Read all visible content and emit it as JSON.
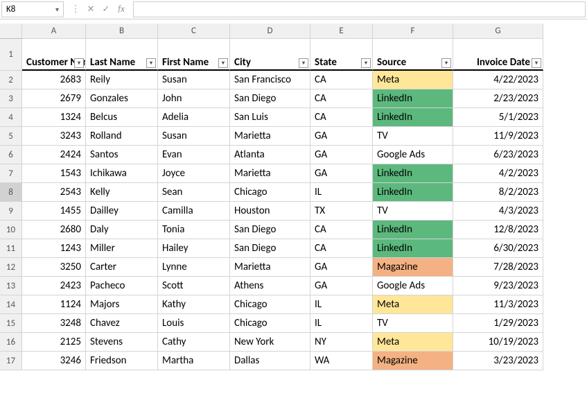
{
  "nameBox": "K8",
  "formulaInput": "",
  "columns": [
    "A",
    "B",
    "C",
    "D",
    "E",
    "F",
    "G"
  ],
  "headers": {
    "A": "Customer Number",
    "B": "Last Name",
    "C": "First Name",
    "D": "City",
    "E": "State",
    "F": "Source",
    "G": "Invoice Date"
  },
  "rowNumbers": [
    1,
    2,
    3,
    4,
    5,
    6,
    7,
    8,
    9,
    10,
    11,
    12,
    13,
    14,
    15,
    16,
    17
  ],
  "selectedRow": 8,
  "sourceColors": {
    "LinkedIn": "src-linkedin",
    "Meta": "src-meta",
    "Magazine": "src-magazine"
  },
  "rows": [
    {
      "num": "2683",
      "last": "Reily",
      "first": "Susan",
      "city": "San Francisco",
      "state": "CA",
      "source": "Meta",
      "date": "4/22/2023"
    },
    {
      "num": "2679",
      "last": "Gonzales",
      "first": "John",
      "city": "San Diego",
      "state": "CA",
      "source": "LinkedIn",
      "date": "2/23/2023"
    },
    {
      "num": "1324",
      "last": "Belcus",
      "first": "Adelia",
      "city": "San Luis",
      "state": "CA",
      "source": "LinkedIn",
      "date": "5/1/2023"
    },
    {
      "num": "3243",
      "last": "Rolland",
      "first": "Susan",
      "city": "Marietta",
      "state": "GA",
      "source": "TV",
      "date": "11/9/2023"
    },
    {
      "num": "2424",
      "last": "Santos",
      "first": "Evan",
      "city": "Atlanta",
      "state": "GA",
      "source": "Google Ads",
      "date": "6/23/2023"
    },
    {
      "num": "1543",
      "last": "Ichikawa",
      "first": "Joyce",
      "city": "Marietta",
      "state": "GA",
      "source": "LinkedIn",
      "date": "4/2/2023"
    },
    {
      "num": "2543",
      "last": "Kelly",
      "first": "Sean",
      "city": "Chicago",
      "state": "IL",
      "source": "LinkedIn",
      "date": "8/2/2023"
    },
    {
      "num": "1455",
      "last": "Dailley",
      "first": "Camilla",
      "city": "Houston",
      "state": "TX",
      "source": "TV",
      "date": "4/3/2023"
    },
    {
      "num": "2680",
      "last": "Daly",
      "first": "Tonia",
      "city": "San Diego",
      "state": "CA",
      "source": "LinkedIn",
      "date": "12/8/2023"
    },
    {
      "num": "1243",
      "last": "Miller",
      "first": "Hailey",
      "city": "San Diego",
      "state": "CA",
      "source": "LinkedIn",
      "date": "6/30/2023"
    },
    {
      "num": "3250",
      "last": "Carter",
      "first": "Lynne",
      "city": "Marietta",
      "state": "GA",
      "source": "Magazine",
      "date": "7/28/2023"
    },
    {
      "num": "2423",
      "last": "Pacheco",
      "first": "Scott",
      "city": "Athens",
      "state": "GA",
      "source": "Google Ads",
      "date": "9/23/2023"
    },
    {
      "num": "1124",
      "last": "Majors",
      "first": "Kathy",
      "city": "Chicago",
      "state": "IL",
      "source": "Meta",
      "date": "11/3/2023"
    },
    {
      "num": "3248",
      "last": "Chavez",
      "first": "Louis",
      "city": "Chicago",
      "state": "IL",
      "source": "TV",
      "date": "1/29/2023"
    },
    {
      "num": "2125",
      "last": "Stevens",
      "first": "Cathy",
      "city": "New York",
      "state": "NY",
      "source": "Meta",
      "date": "10/19/2023"
    },
    {
      "num": "3246",
      "last": "Friedson",
      "first": "Martha",
      "city": "Dallas",
      "state": "WA",
      "source": "Magazine",
      "date": "3/23/2023"
    }
  ]
}
